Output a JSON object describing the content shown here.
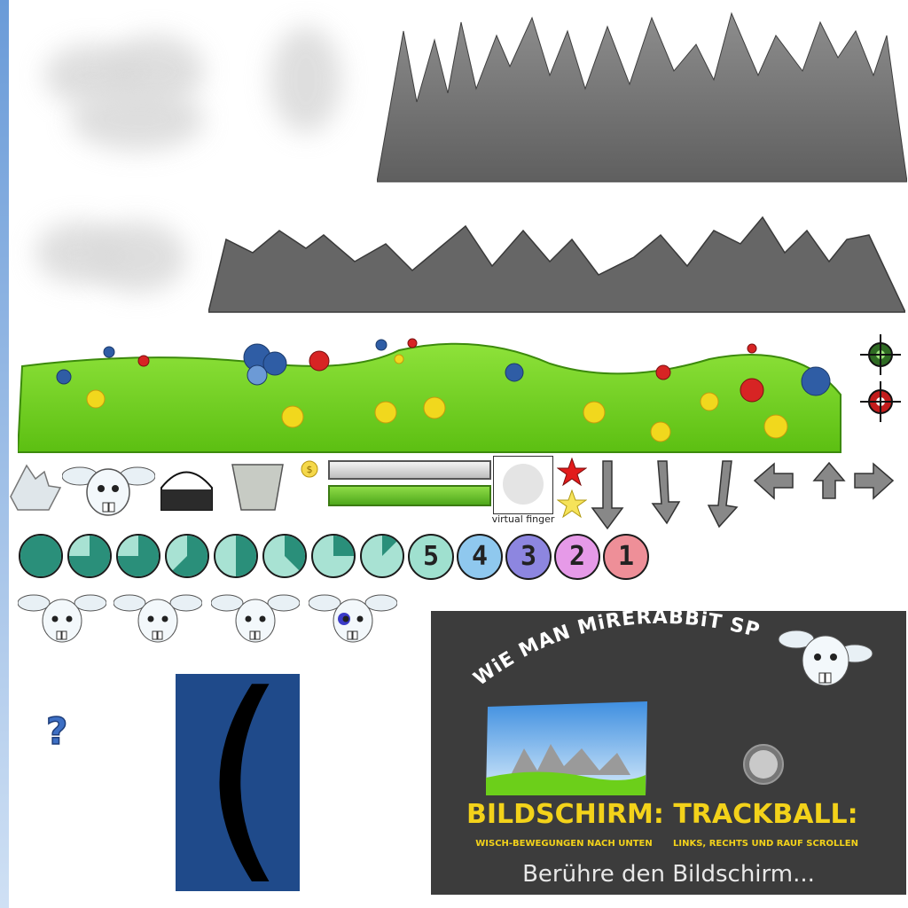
{
  "sheet": {
    "finger_label": "virtual finger",
    "question_mark": "?",
    "bracket_glyph": "("
  },
  "timer": {
    "pie_fractions": [
      1,
      0.75,
      0.75,
      0.625,
      0.5,
      0.375,
      0.25,
      0.125
    ],
    "numbers": [
      {
        "label": "5",
        "color": "#9fe0cf"
      },
      {
        "label": "4",
        "color": "#8fc8ee"
      },
      {
        "label": "3",
        "color": "#8d86e0"
      },
      {
        "label": "2",
        "color": "#e69ae8"
      },
      {
        "label": "1",
        "color": "#ee8f98"
      }
    ]
  },
  "progress": {
    "empty_fraction": 0,
    "full_fraction": 1
  },
  "instructions": {
    "title": "WiE MAN MiRERABBiT SPiELT",
    "screen_heading": "BILDSCHIRM:",
    "screen_sub": "WISCH-BEWEGUNGEN NACH UNTEN",
    "trackball_heading": "TRACKBALL:",
    "trackball_sub": "LINKS, RECHTS UND RAUF SCROLLEN",
    "touch_prompt": "Berühre den Bildschirm..."
  },
  "colors": {
    "grass": "#6ccf1a",
    "mountain": "#6b6b6b",
    "accent_yellow": "#f3d21a",
    "teal": "#2a8f7a",
    "navy": "#1f4a8a"
  }
}
